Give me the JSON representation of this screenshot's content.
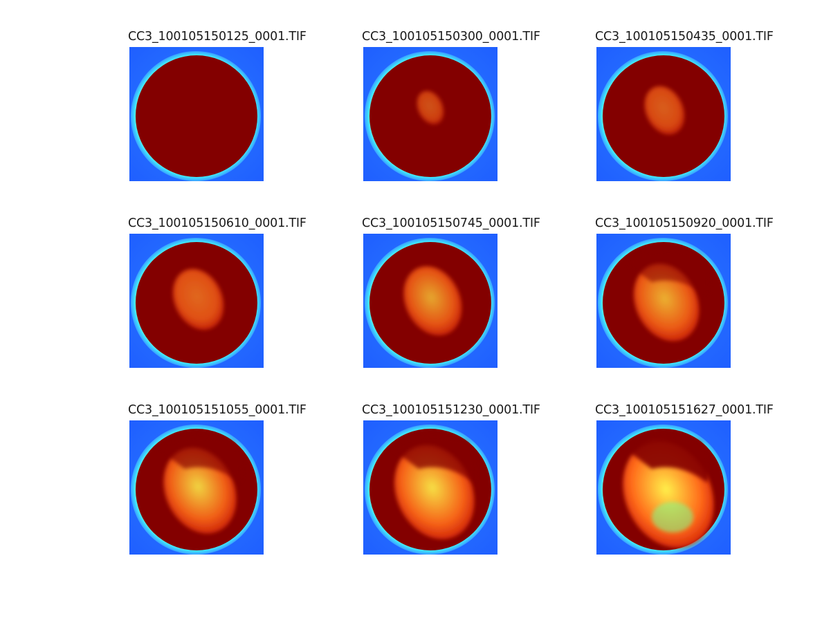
{
  "figure": {
    "panels": [
      {
        "title": "CC3_100105150125_0001.TIF",
        "spot": 0.0
      },
      {
        "title": "CC3_100105150300_0001.TIF",
        "spot": 0.12
      },
      {
        "title": "CC3_100105150435_0001.TIF",
        "spot": 0.3
      },
      {
        "title": "CC3_100105150610_0001.TIF",
        "spot": 0.45
      },
      {
        "title": "CC3_100105150745_0001.TIF",
        "spot": 0.55
      },
      {
        "title": "CC3_100105150920_0001.TIF",
        "spot": 0.65
      },
      {
        "title": "CC3_100105151055_0001.TIF",
        "spot": 0.75
      },
      {
        "title": "CC3_100105151230_0001.TIF",
        "spot": 0.85
      },
      {
        "title": "CC3_100105151627_0001.TIF",
        "spot": 1.0
      }
    ],
    "colormap": "jet",
    "colors": {
      "background_blue": "#1f5fff",
      "ring_cyan": "#3ee8ff",
      "ring_yellow": "#ffe14d",
      "disc_dark_red": "#830000",
      "hot_orange": "#ff6a1a",
      "hot_yellow": "#ffd23a"
    }
  }
}
